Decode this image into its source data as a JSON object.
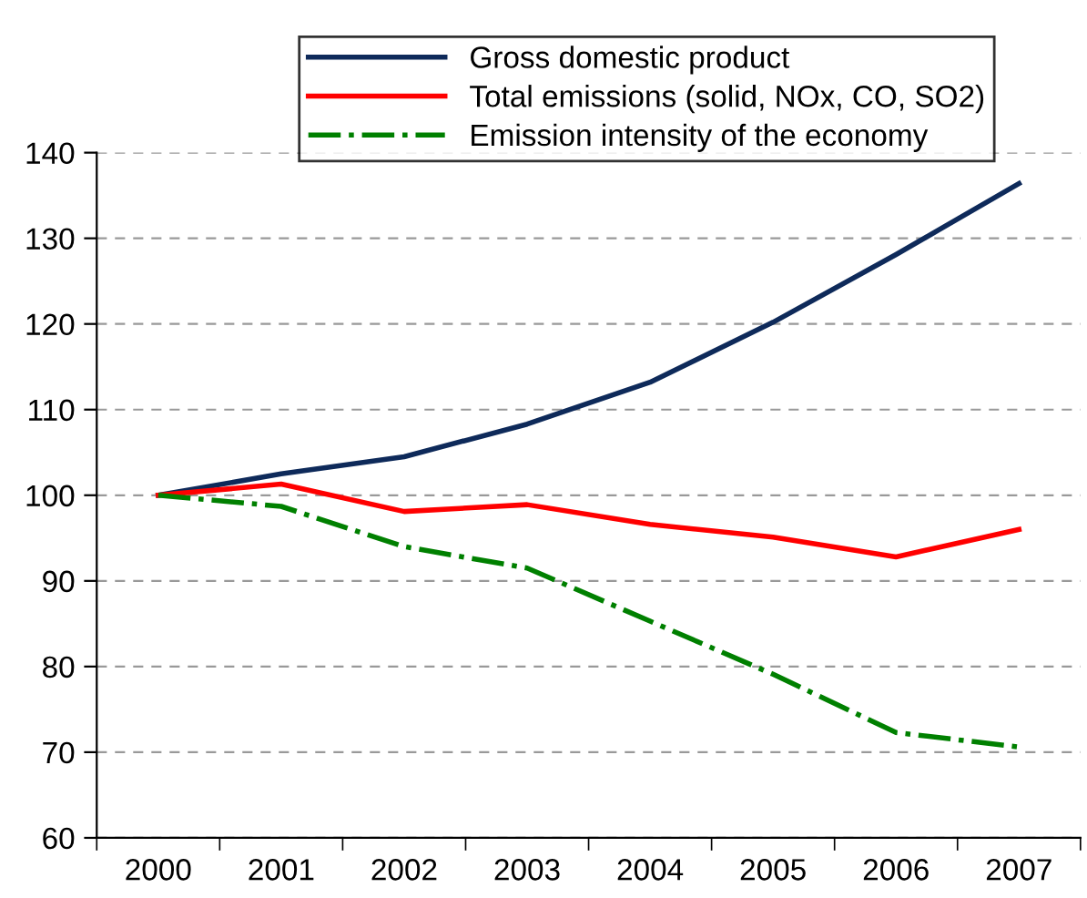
{
  "chart_data": {
    "type": "line",
    "categories": [
      "2000",
      "2001",
      "2002",
      "2003",
      "2004",
      "2005",
      "2006",
      "2007"
    ],
    "series": [
      {
        "name": "Gross domestic product",
        "color": "#0e2a5a",
        "line_style": "solid",
        "values": [
          100,
          102.5,
          104.5,
          108.3,
          113.2,
          120.2,
          128.1,
          136.4
        ]
      },
      {
        "name": "Total emissions (solid, NOx, CO, SO2)",
        "color": "#ff0000",
        "line_style": "solid",
        "values": [
          100,
          101.3,
          98.1,
          98.9,
          96.6,
          95.1,
          92.8,
          96
        ]
      },
      {
        "name": "Emission intensity of the economy",
        "color": "#008000",
        "line_style": "dashdot",
        "values": [
          100,
          98.7,
          94,
          91.5,
          85.3,
          79.1,
          72.3,
          70.6
        ]
      }
    ],
    "ylim": [
      60,
      140
    ],
    "yticks": [
      60,
      70,
      80,
      90,
      100,
      110,
      120,
      130,
      140
    ],
    "grid": "y",
    "legend": "top",
    "marker": "none"
  }
}
